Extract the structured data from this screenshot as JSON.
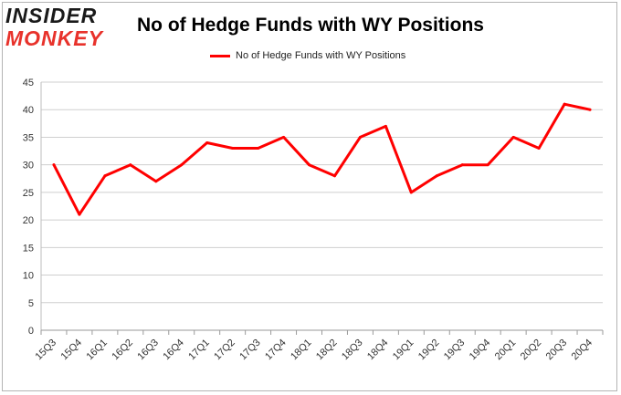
{
  "logo": {
    "line1": "INSIDER",
    "line2": "MONKEY"
  },
  "chart_data": {
    "type": "line",
    "title": "No of Hedge Funds with WY Positions",
    "categories": [
      "15Q3",
      "15Q4",
      "16Q1",
      "16Q2",
      "16Q3",
      "16Q4",
      "17Q1",
      "17Q2",
      "17Q3",
      "17Q4",
      "18Q1",
      "18Q2",
      "18Q3",
      "18Q4",
      "19Q1",
      "19Q2",
      "19Q3",
      "19Q4",
      "20Q1",
      "20Q2",
      "20Q3",
      "20Q4"
    ],
    "series": [
      {
        "name": "No of Hedge Funds with WY Positions",
        "color": "#ff0000",
        "values": [
          30,
          21,
          28,
          30,
          27,
          30,
          34,
          33,
          33,
          35,
          30,
          28,
          35,
          37,
          25,
          28,
          30,
          30,
          35,
          33,
          41,
          40
        ]
      }
    ],
    "ylim": [
      0,
      45
    ],
    "yticks": [
      0,
      5,
      10,
      15,
      20,
      25,
      30,
      35,
      40,
      45
    ],
    "grid": true,
    "legend": "top-center",
    "xlabel": "",
    "ylabel": ""
  }
}
